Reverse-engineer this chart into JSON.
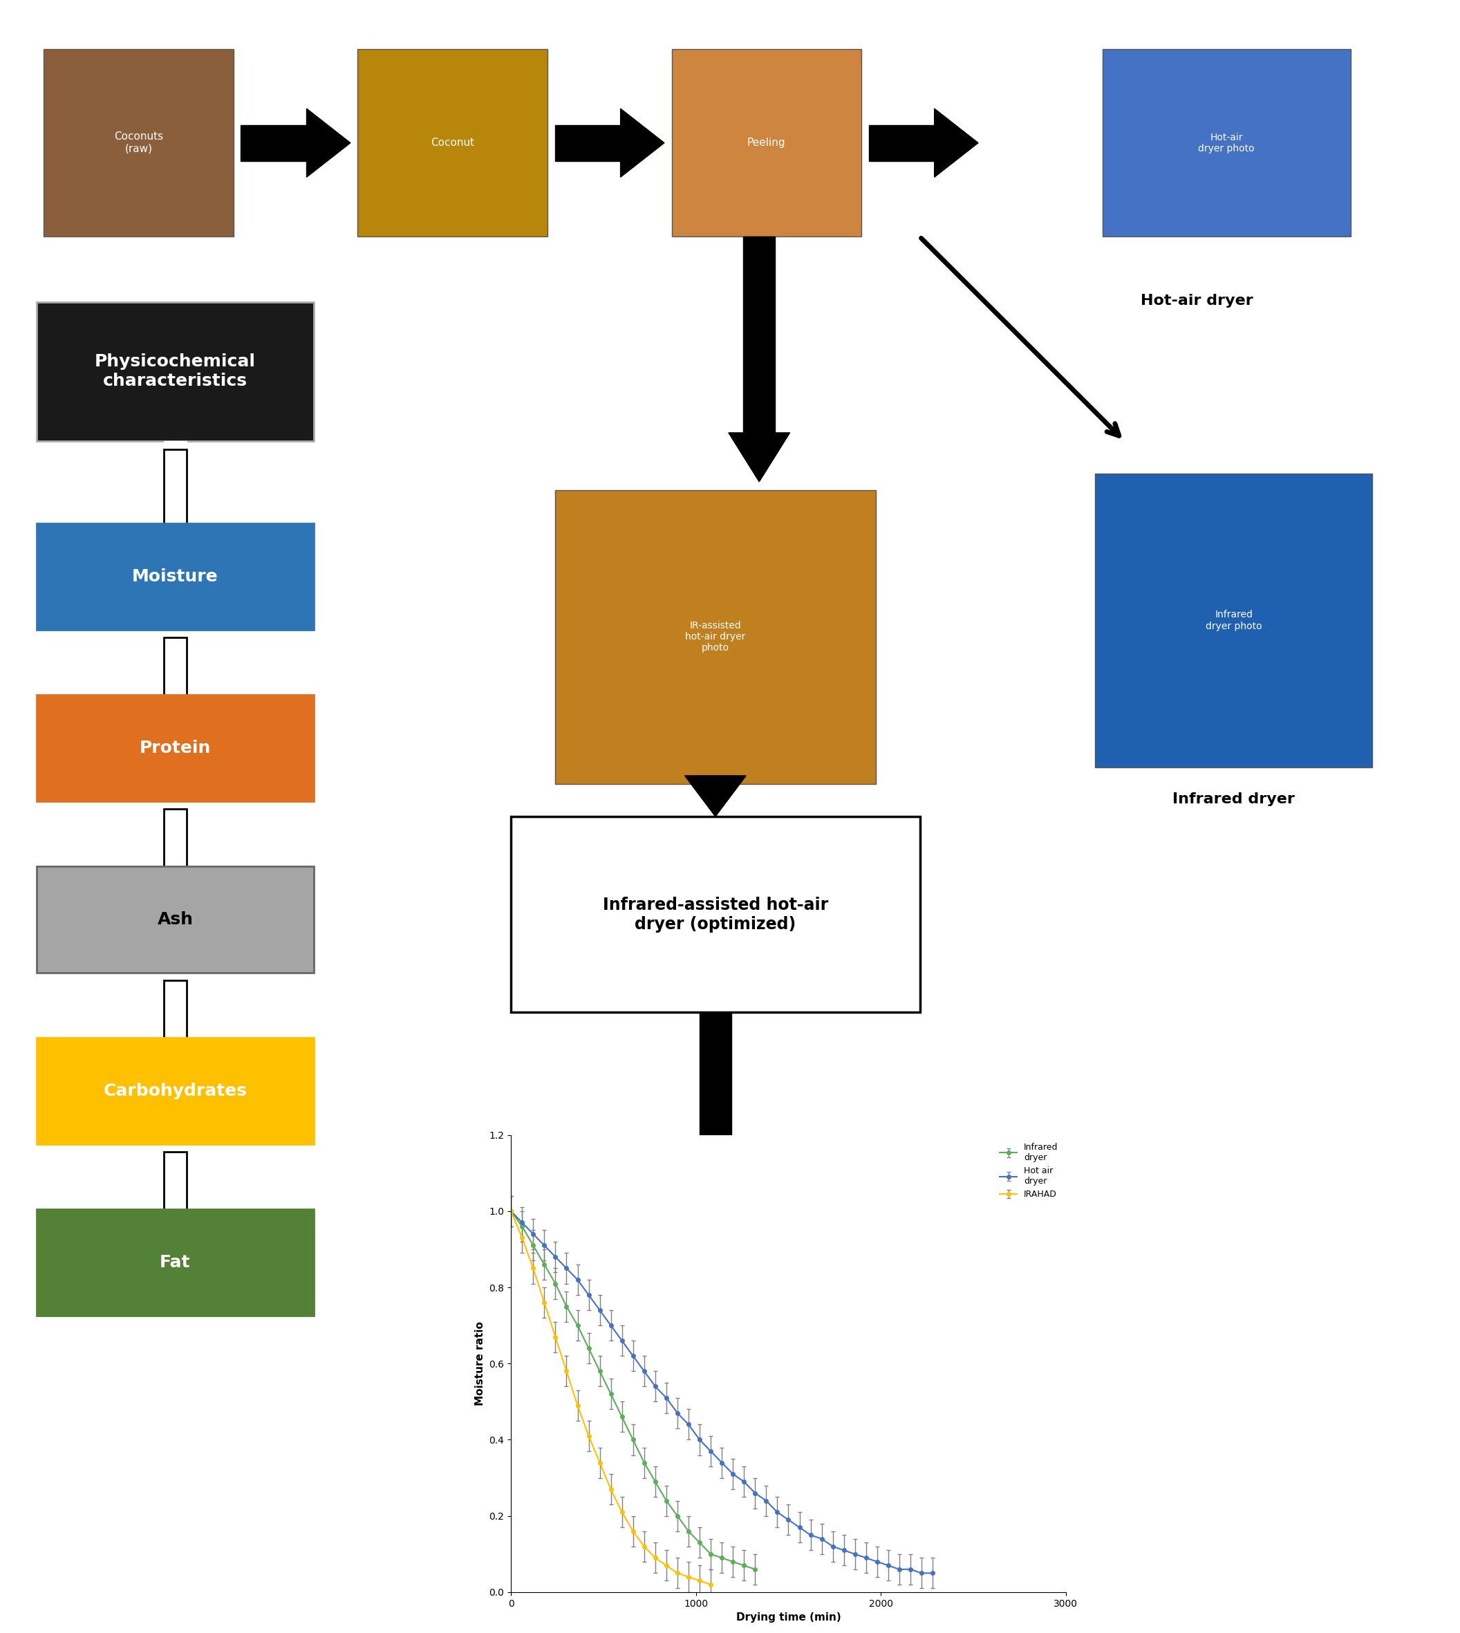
{
  "fig_width": 21.12,
  "fig_height": 23.62,
  "background_color": "#ffffff",
  "left_boxes": [
    {
      "label": "Physicochemical\ncharacteristics",
      "color": "#1a1a1a",
      "text_color": "#ffffff",
      "font_size": 18,
      "bold": true
    },
    {
      "label": "Moisture",
      "color": "#2e75b6",
      "text_color": "#ffffff",
      "font_size": 18,
      "bold": true
    },
    {
      "label": "Protein",
      "color": "#e07020",
      "text_color": "#ffffff",
      "font_size": 18,
      "bold": true
    },
    {
      "label": "Ash",
      "color": "#a5a5a5",
      "text_color": "#000000",
      "font_size": 18,
      "bold": true
    },
    {
      "label": "Carbohydrates",
      "color": "#ffc000",
      "text_color": "#ffffff",
      "font_size": 18,
      "bold": true
    },
    {
      "label": "Fat",
      "color": "#538135",
      "text_color": "#ffffff",
      "font_size": 18,
      "bold": true
    }
  ],
  "center_box_label": "Infrared-assisted hot-air\ndryer (optimized)",
  "hot_air_dryer_label": "Hot-air dryer",
  "infrared_dryer_label": "Infrared dryer",
  "chart": {
    "x_infrared": [
      0,
      60,
      120,
      180,
      240,
      300,
      360,
      420,
      480,
      540,
      600,
      660,
      720,
      780,
      840,
      900,
      960,
      1020,
      1080,
      1140,
      1200,
      1260,
      1320
    ],
    "y_infrared": [
      1.0,
      0.96,
      0.91,
      0.86,
      0.81,
      0.75,
      0.7,
      0.64,
      0.58,
      0.52,
      0.46,
      0.4,
      0.34,
      0.29,
      0.24,
      0.2,
      0.16,
      0.13,
      0.1,
      0.09,
      0.08,
      0.07,
      0.06
    ],
    "x_hotair": [
      0,
      60,
      120,
      180,
      240,
      300,
      360,
      420,
      480,
      540,
      600,
      660,
      720,
      780,
      840,
      900,
      960,
      1020,
      1080,
      1140,
      1200,
      1260,
      1320,
      1380,
      1440,
      1500,
      1560,
      1620,
      1680,
      1740,
      1800,
      1860,
      1920,
      1980,
      2040,
      2100,
      2160,
      2220,
      2280
    ],
    "y_hotair": [
      1.0,
      0.97,
      0.94,
      0.91,
      0.88,
      0.85,
      0.82,
      0.78,
      0.74,
      0.7,
      0.66,
      0.62,
      0.58,
      0.54,
      0.51,
      0.47,
      0.44,
      0.4,
      0.37,
      0.34,
      0.31,
      0.29,
      0.26,
      0.24,
      0.21,
      0.19,
      0.17,
      0.15,
      0.14,
      0.12,
      0.11,
      0.1,
      0.09,
      0.08,
      0.07,
      0.06,
      0.06,
      0.05,
      0.05
    ],
    "x_irahad": [
      0,
      60,
      120,
      180,
      240,
      300,
      360,
      420,
      480,
      540,
      600,
      660,
      720,
      780,
      840,
      900,
      960,
      1020,
      1080
    ],
    "y_irahad": [
      1.0,
      0.93,
      0.85,
      0.76,
      0.67,
      0.58,
      0.49,
      0.41,
      0.34,
      0.27,
      0.21,
      0.16,
      0.12,
      0.09,
      0.07,
      0.05,
      0.04,
      0.03,
      0.02
    ],
    "color_infrared": "#5aaf5a",
    "color_hotair": "#4472c4",
    "color_irahad": "#ffc000",
    "xlabel": "Drying time (min)",
    "ylabel": "Moisture ratio",
    "ylim": [
      0.0,
      1.2
    ],
    "xlim": [
      0,
      3000
    ],
    "yticks": [
      0.0,
      0.2,
      0.4,
      0.6,
      0.8,
      1.0,
      1.2
    ],
    "xticks": [
      0,
      1000,
      2000,
      3000
    ],
    "legend_infrared": "Infrared\ndryer",
    "legend_hotair": "Hot air\ndryer",
    "legend_irahad": "IRAHAD"
  }
}
